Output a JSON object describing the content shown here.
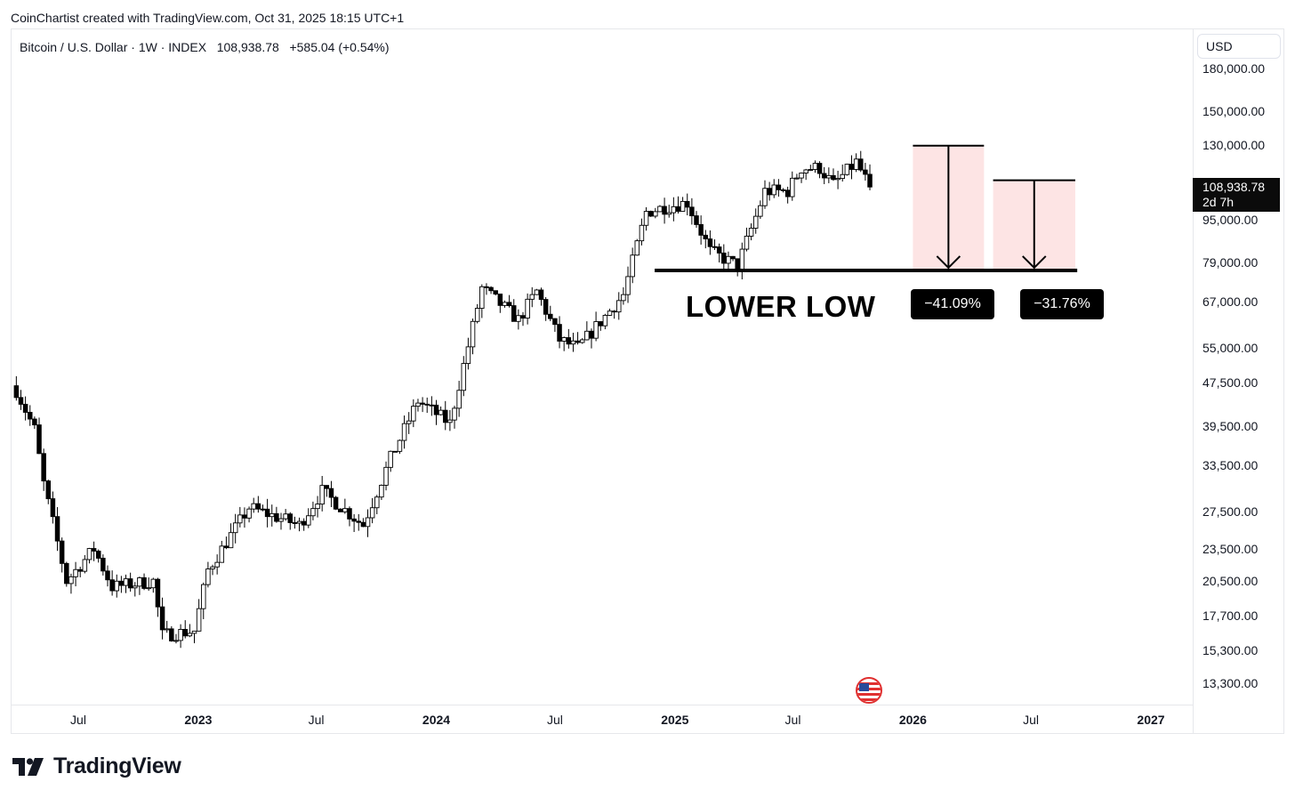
{
  "header": {
    "credit": "CoinChartist created with TradingView.com, Oct 31, 2025 18:15 UTC+1"
  },
  "symbol": {
    "line": "Bitcoin / U.S. Dollar · 1W · INDEX   108,938.78   +585.04 (+0.54%)"
  },
  "currency": {
    "label": "USD"
  },
  "price_tag": {
    "price": "108,938.78",
    "countdown": "2d 7h"
  },
  "annotation": {
    "lower_low": "LOWER LOW",
    "drop1": "−41.09%",
    "drop2": "−31.76%"
  },
  "brand": {
    "name": "TradingView"
  },
  "icons": {
    "event_flag": "us-flag-icon",
    "logo": "tradingview-logo-icon"
  },
  "colors": {
    "candle": "#000000",
    "up_fill": "#ffffff",
    "zone_fill": "#fde4e4",
    "text": "#131722"
  },
  "chart_data": {
    "type": "candlestick",
    "title": "Bitcoin / U.S. Dollar · 1W · INDEX",
    "y_scale": "log",
    "y_ticks": [
      {
        "v": 180000,
        "label": "180,000.00"
      },
      {
        "v": 150000,
        "label": "150,000.00"
      },
      {
        "v": 130000,
        "label": "130,000.00"
      },
      {
        "v": 95000,
        "label": "95,000.00"
      },
      {
        "v": 79000,
        "label": "79,000.00"
      },
      {
        "v": 67000,
        "label": "67,000.00"
      },
      {
        "v": 55000,
        "label": "55,000.00"
      },
      {
        "v": 47500,
        "label": "47,500.00"
      },
      {
        "v": 39500,
        "label": "39,500.00"
      },
      {
        "v": 33500,
        "label": "33,500.00"
      },
      {
        "v": 27500,
        "label": "27,500.00"
      },
      {
        "v": 23500,
        "label": "23,500.00"
      },
      {
        "v": 20500,
        "label": "20,500.00"
      },
      {
        "v": 17700,
        "label": "17,700.00"
      },
      {
        "v": 15300,
        "label": "15,300.00"
      },
      {
        "v": 13300,
        "label": "13,300.00"
      }
    ],
    "x_ticks": [
      {
        "date": "2022-07-01",
        "label": "Jul",
        "year": false
      },
      {
        "date": "2023-01-01",
        "label": "2023",
        "year": true
      },
      {
        "date": "2023-07-01",
        "label": "Jul",
        "year": false
      },
      {
        "date": "2024-01-01",
        "label": "2024",
        "year": true
      },
      {
        "date": "2024-07-01",
        "label": "Jul",
        "year": false
      },
      {
        "date": "2025-01-01",
        "label": "2025",
        "year": true
      },
      {
        "date": "2025-07-01",
        "label": "Jul",
        "year": false
      },
      {
        "date": "2026-01-01",
        "label": "2026",
        "year": true
      },
      {
        "date": "2026-07-01",
        "label": "Jul",
        "year": false
      },
      {
        "date": "2027-01-01",
        "label": "2027",
        "year": true
      }
    ],
    "anchors": [
      {
        "date": "2022-03-28",
        "close": 46000
      },
      {
        "date": "2022-04-25",
        "close": 39000
      },
      {
        "date": "2022-05-09",
        "close": 31000
      },
      {
        "date": "2022-06-13",
        "close": 20500
      },
      {
        "date": "2022-07-25",
        "close": 23500
      },
      {
        "date": "2022-08-22",
        "close": 20000
      },
      {
        "date": "2022-10-24",
        "close": 20500
      },
      {
        "date": "2022-11-07",
        "close": 16300
      },
      {
        "date": "2022-12-26",
        "close": 16600
      },
      {
        "date": "2023-01-16",
        "close": 21500
      },
      {
        "date": "2023-03-20",
        "close": 28000
      },
      {
        "date": "2023-06-05",
        "close": 26000
      },
      {
        "date": "2023-07-10",
        "close": 30000
      },
      {
        "date": "2023-09-11",
        "close": 26000
      },
      {
        "date": "2023-10-23",
        "close": 34500
      },
      {
        "date": "2023-12-04",
        "close": 44000
      },
      {
        "date": "2024-01-22",
        "close": 40000
      },
      {
        "date": "2024-03-11",
        "close": 71000
      },
      {
        "date": "2024-05-06",
        "close": 62000
      },
      {
        "date": "2024-06-03",
        "close": 70000
      },
      {
        "date": "2024-07-08",
        "close": 57000
      },
      {
        "date": "2024-08-05",
        "close": 55000
      },
      {
        "date": "2024-10-14",
        "close": 69000
      },
      {
        "date": "2024-11-18",
        "close": 98000
      },
      {
        "date": "2024-12-16",
        "close": 100000
      },
      {
        "date": "2025-01-20",
        "close": 102000
      },
      {
        "date": "2025-02-24",
        "close": 83000
      },
      {
        "date": "2025-04-07",
        "close": 78000
      },
      {
        "date": "2025-05-05",
        "close": 96000
      },
      {
        "date": "2025-05-19",
        "close": 107000
      },
      {
        "date": "2025-06-23",
        "close": 107000
      },
      {
        "date": "2025-07-14",
        "close": 118000
      },
      {
        "date": "2025-08-11",
        "close": 118000
      },
      {
        "date": "2025-09-01",
        "close": 110000
      },
      {
        "date": "2025-10-06",
        "close": 121000
      },
      {
        "date": "2025-10-27",
        "close": 108938.78
      }
    ],
    "support_level": 76500,
    "projections": [
      {
        "label": "−41.09%",
        "from_date": "2026-01-01",
        "to_date": "2026-04-20",
        "top": 129800,
        "bottom": 76500
      },
      {
        "label": "−31.76%",
        "from_date": "2026-05-04",
        "to_date": "2026-09-07",
        "top": 112100,
        "bottom": 76500
      }
    ]
  }
}
